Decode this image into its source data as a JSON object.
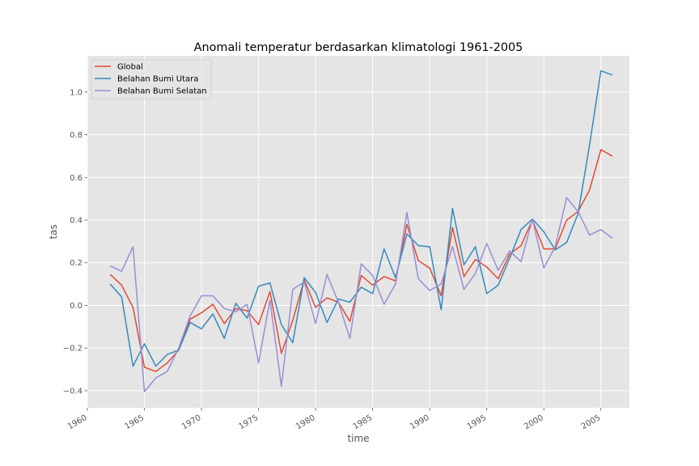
{
  "chart_data": {
    "type": "line",
    "title": "Anomali temperatur berdasarkan klimatologi 1961-2005",
    "xlabel": "time",
    "ylabel": "tas",
    "xlim": [
      1960,
      2007.5
    ],
    "ylim": [
      -0.48,
      1.17
    ],
    "xticks": [
      1960,
      1965,
      1970,
      1975,
      1980,
      1985,
      1990,
      1995,
      2000,
      2005
    ],
    "xtick_labels": [
      "1960",
      "1965",
      "1970",
      "1975",
      "1980",
      "1985",
      "1990",
      "1995",
      "2000",
      "2005"
    ],
    "yticks": [
      -0.4,
      -0.2,
      0.0,
      0.2,
      0.4,
      0.6,
      0.8,
      1.0
    ],
    "ytick_labels": [
      "−0.4",
      "−0.2",
      "0.0",
      "0.2",
      "0.4",
      "0.6",
      "0.8",
      "1.0"
    ],
    "grid": true,
    "legend_position": "top-left",
    "x": [
      1962,
      1963,
      1964,
      1965,
      1966,
      1967,
      1968,
      1969,
      1970,
      1971,
      1972,
      1973,
      1974,
      1975,
      1976,
      1977,
      1978,
      1979,
      1980,
      1981,
      1982,
      1983,
      1984,
      1985,
      1986,
      1987,
      1988,
      1989,
      1990,
      1991,
      1992,
      1993,
      1994,
      1995,
      1996,
      1997,
      1998,
      1999,
      2000,
      2001,
      2002,
      2003,
      2004,
      2005,
      2006
    ],
    "series": [
      {
        "name": "Global",
        "color": "#e24a33",
        "values": [
          0.145,
          0.095,
          -0.01,
          -0.29,
          -0.31,
          -0.27,
          -0.21,
          -0.065,
          -0.035,
          0.005,
          -0.085,
          -0.015,
          -0.025,
          -0.09,
          0.065,
          -0.225,
          -0.07,
          0.12,
          -0.01,
          0.035,
          0.015,
          -0.075,
          0.14,
          0.095,
          0.135,
          0.115,
          0.38,
          0.21,
          0.175,
          0.045,
          0.365,
          0.135,
          0.215,
          0.18,
          0.125,
          0.24,
          0.28,
          0.4,
          0.265,
          0.265,
          0.4,
          0.44,
          0.54,
          0.73,
          0.7
        ]
      },
      {
        "name": "Belahan Bumi Utara",
        "color": "#348abd",
        "values": [
          0.1,
          0.04,
          -0.285,
          -0.18,
          -0.285,
          -0.23,
          -0.21,
          -0.08,
          -0.11,
          -0.04,
          -0.155,
          0.01,
          -0.06,
          0.09,
          0.105,
          -0.09,
          -0.175,
          0.13,
          0.06,
          -0.08,
          0.03,
          0.015,
          0.085,
          0.055,
          0.265,
          0.13,
          0.335,
          0.28,
          0.275,
          -0.02,
          0.455,
          0.19,
          0.275,
          0.055,
          0.095,
          0.22,
          0.355,
          0.405,
          0.345,
          0.26,
          0.295,
          0.43,
          0.75,
          1.1,
          1.08
        ]
      },
      {
        "name": "Belahan Bumi Selatan",
        "color": "#988ed5",
        "values": [
          0.185,
          0.16,
          0.275,
          -0.405,
          -0.34,
          -0.31,
          -0.2,
          -0.05,
          0.045,
          0.045,
          -0.015,
          -0.03,
          0.005,
          -0.27,
          0.025,
          -0.38,
          0.075,
          0.11,
          -0.085,
          0.145,
          0.015,
          -0.155,
          0.195,
          0.14,
          0.005,
          0.1,
          0.435,
          0.125,
          0.07,
          0.1,
          0.275,
          0.075,
          0.15,
          0.29,
          0.165,
          0.255,
          0.205,
          0.405,
          0.175,
          0.275,
          0.505,
          0.44,
          0.33,
          0.355,
          0.315
        ]
      }
    ]
  }
}
